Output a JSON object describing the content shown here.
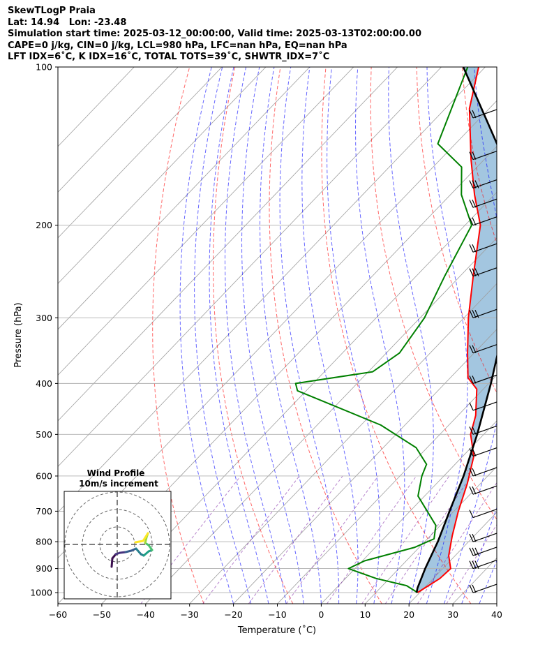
{
  "header": {
    "line1": "SkewTLogP Praia",
    "line2": "Lat: 14.94   Lon: -23.48",
    "line3": "Simulation start time: 2025-03-12_00:00:00, Valid time: 2025-03-13T02:00:00.00",
    "line4": "CAPE=0 j/kg, CIN=0 j/kg, LCL=980 hPa, LFC=nan hPa, EQ=nan hPa",
    "line5": "LFT IDX=6˚C, K IDX=16˚C, TOTAL TOTS=39˚C, SHWTR_IDX=7˚C"
  },
  "colors": {
    "temperature": "#ff0000",
    "dewpoint": "#008000",
    "parcel": "#000000",
    "shade": "#a3c6e0",
    "dry_adiabat": "#ff0000",
    "moist_adiabat": "#0000ff",
    "mixing_ratio": "#7b1fa2",
    "isotherm": "#9e9e9e",
    "barb": "#000000"
  },
  "chart_data": {
    "type": "line",
    "title": "SkewTLogP Praia",
    "xlabel": "Temperature (˚C)",
    "ylabel": "Pressure (hPa)",
    "xlim": [
      -60,
      40
    ],
    "ylim": [
      1050,
      100
    ],
    "y_scale": "log",
    "grid": true,
    "x_ticks": [
      "−60",
      "−50",
      "−40",
      "−30",
      "−20",
      "−10",
      "0",
      "10",
      "20",
      "30",
      "40"
    ],
    "y_ticks": [
      "100",
      "200",
      "300",
      "400",
      "500",
      "600",
      "700",
      "800",
      "900",
      "1000"
    ],
    "series": [
      {
        "role": "temperature",
        "points": [
          [
            19.5,
            1000
          ],
          [
            21.5,
            940
          ],
          [
            21.8,
            900
          ],
          [
            18.5,
            850
          ],
          [
            15,
            780
          ],
          [
            11,
            700
          ],
          [
            7,
            620
          ],
          [
            2.5,
            550
          ],
          [
            -3,
            500
          ],
          [
            -6,
            460
          ],
          [
            -11.5,
            410
          ],
          [
            -16,
            390
          ],
          [
            -21.5,
            350
          ],
          [
            -29,
            300
          ],
          [
            -37,
            250
          ],
          [
            -46.5,
            200
          ],
          [
            -54.5,
            175
          ],
          [
            -63,
            150
          ],
          [
            -74.5,
            120
          ],
          [
            -81.5,
            100
          ]
        ]
      },
      {
        "role": "dewpoint",
        "points": [
          [
            19.5,
            1000
          ],
          [
            15.5,
            970
          ],
          [
            7,
            940
          ],
          [
            -1.5,
            900
          ],
          [
            0.5,
            870
          ],
          [
            9,
            820
          ],
          [
            11.5,
            790
          ],
          [
            9,
            745
          ],
          [
            -1.5,
            655
          ],
          [
            -5,
            600
          ],
          [
            -6.5,
            570
          ],
          [
            -12.5,
            530
          ],
          [
            -25.5,
            480
          ],
          [
            -52,
            413
          ],
          [
            -54,
            400
          ],
          [
            -39,
            380
          ],
          [
            -37,
            350
          ],
          [
            -39,
            300
          ],
          [
            -43.5,
            250
          ],
          [
            -48.5,
            200
          ],
          [
            -57.5,
            175
          ],
          [
            -63.5,
            155
          ],
          [
            -74,
            140
          ],
          [
            -84,
            100
          ]
        ]
      },
      {
        "role": "parcel",
        "points": [
          [
            19.3,
            1000
          ],
          [
            18.5,
            980
          ],
          [
            16,
            900
          ],
          [
            13,
            800
          ],
          [
            9,
            700
          ],
          [
            4.5,
            600
          ],
          [
            -1.5,
            500
          ],
          [
            -9.5,
            400
          ],
          [
            -20.5,
            300
          ],
          [
            -37.5,
            200
          ],
          [
            -55.5,
            150
          ],
          [
            -85,
            100
          ]
        ]
      }
    ],
    "wind_barbs": [
      {
        "p": 125,
        "ms": 12
      },
      {
        "p": 150,
        "ms": 12
      },
      {
        "p": 170,
        "ms": 14
      },
      {
        "p": 185,
        "ms": 12
      },
      {
        "p": 200,
        "ms": 10
      },
      {
        "p": 225,
        "ms": 10
      },
      {
        "p": 250,
        "ms": 14
      },
      {
        "p": 300,
        "ms": 14
      },
      {
        "p": 350,
        "ms": 10
      },
      {
        "p": 400,
        "ms": 8
      },
      {
        "p": 450,
        "ms": 6
      },
      {
        "p": 500,
        "ms": 10
      },
      {
        "p": 550,
        "ms": 8
      },
      {
        "p": 600,
        "ms": 8
      },
      {
        "p": 650,
        "ms": 8
      },
      {
        "p": 720,
        "ms": 6
      },
      {
        "p": 800,
        "ms": 8
      },
      {
        "p": 850,
        "ms": 16
      },
      {
        "p": 900,
        "ms": 16
      },
      {
        "p": 1000,
        "ms": 8
      }
    ],
    "inset": {
      "title": "Wind Profile",
      "subtitle": "10m/s increment"
    }
  }
}
